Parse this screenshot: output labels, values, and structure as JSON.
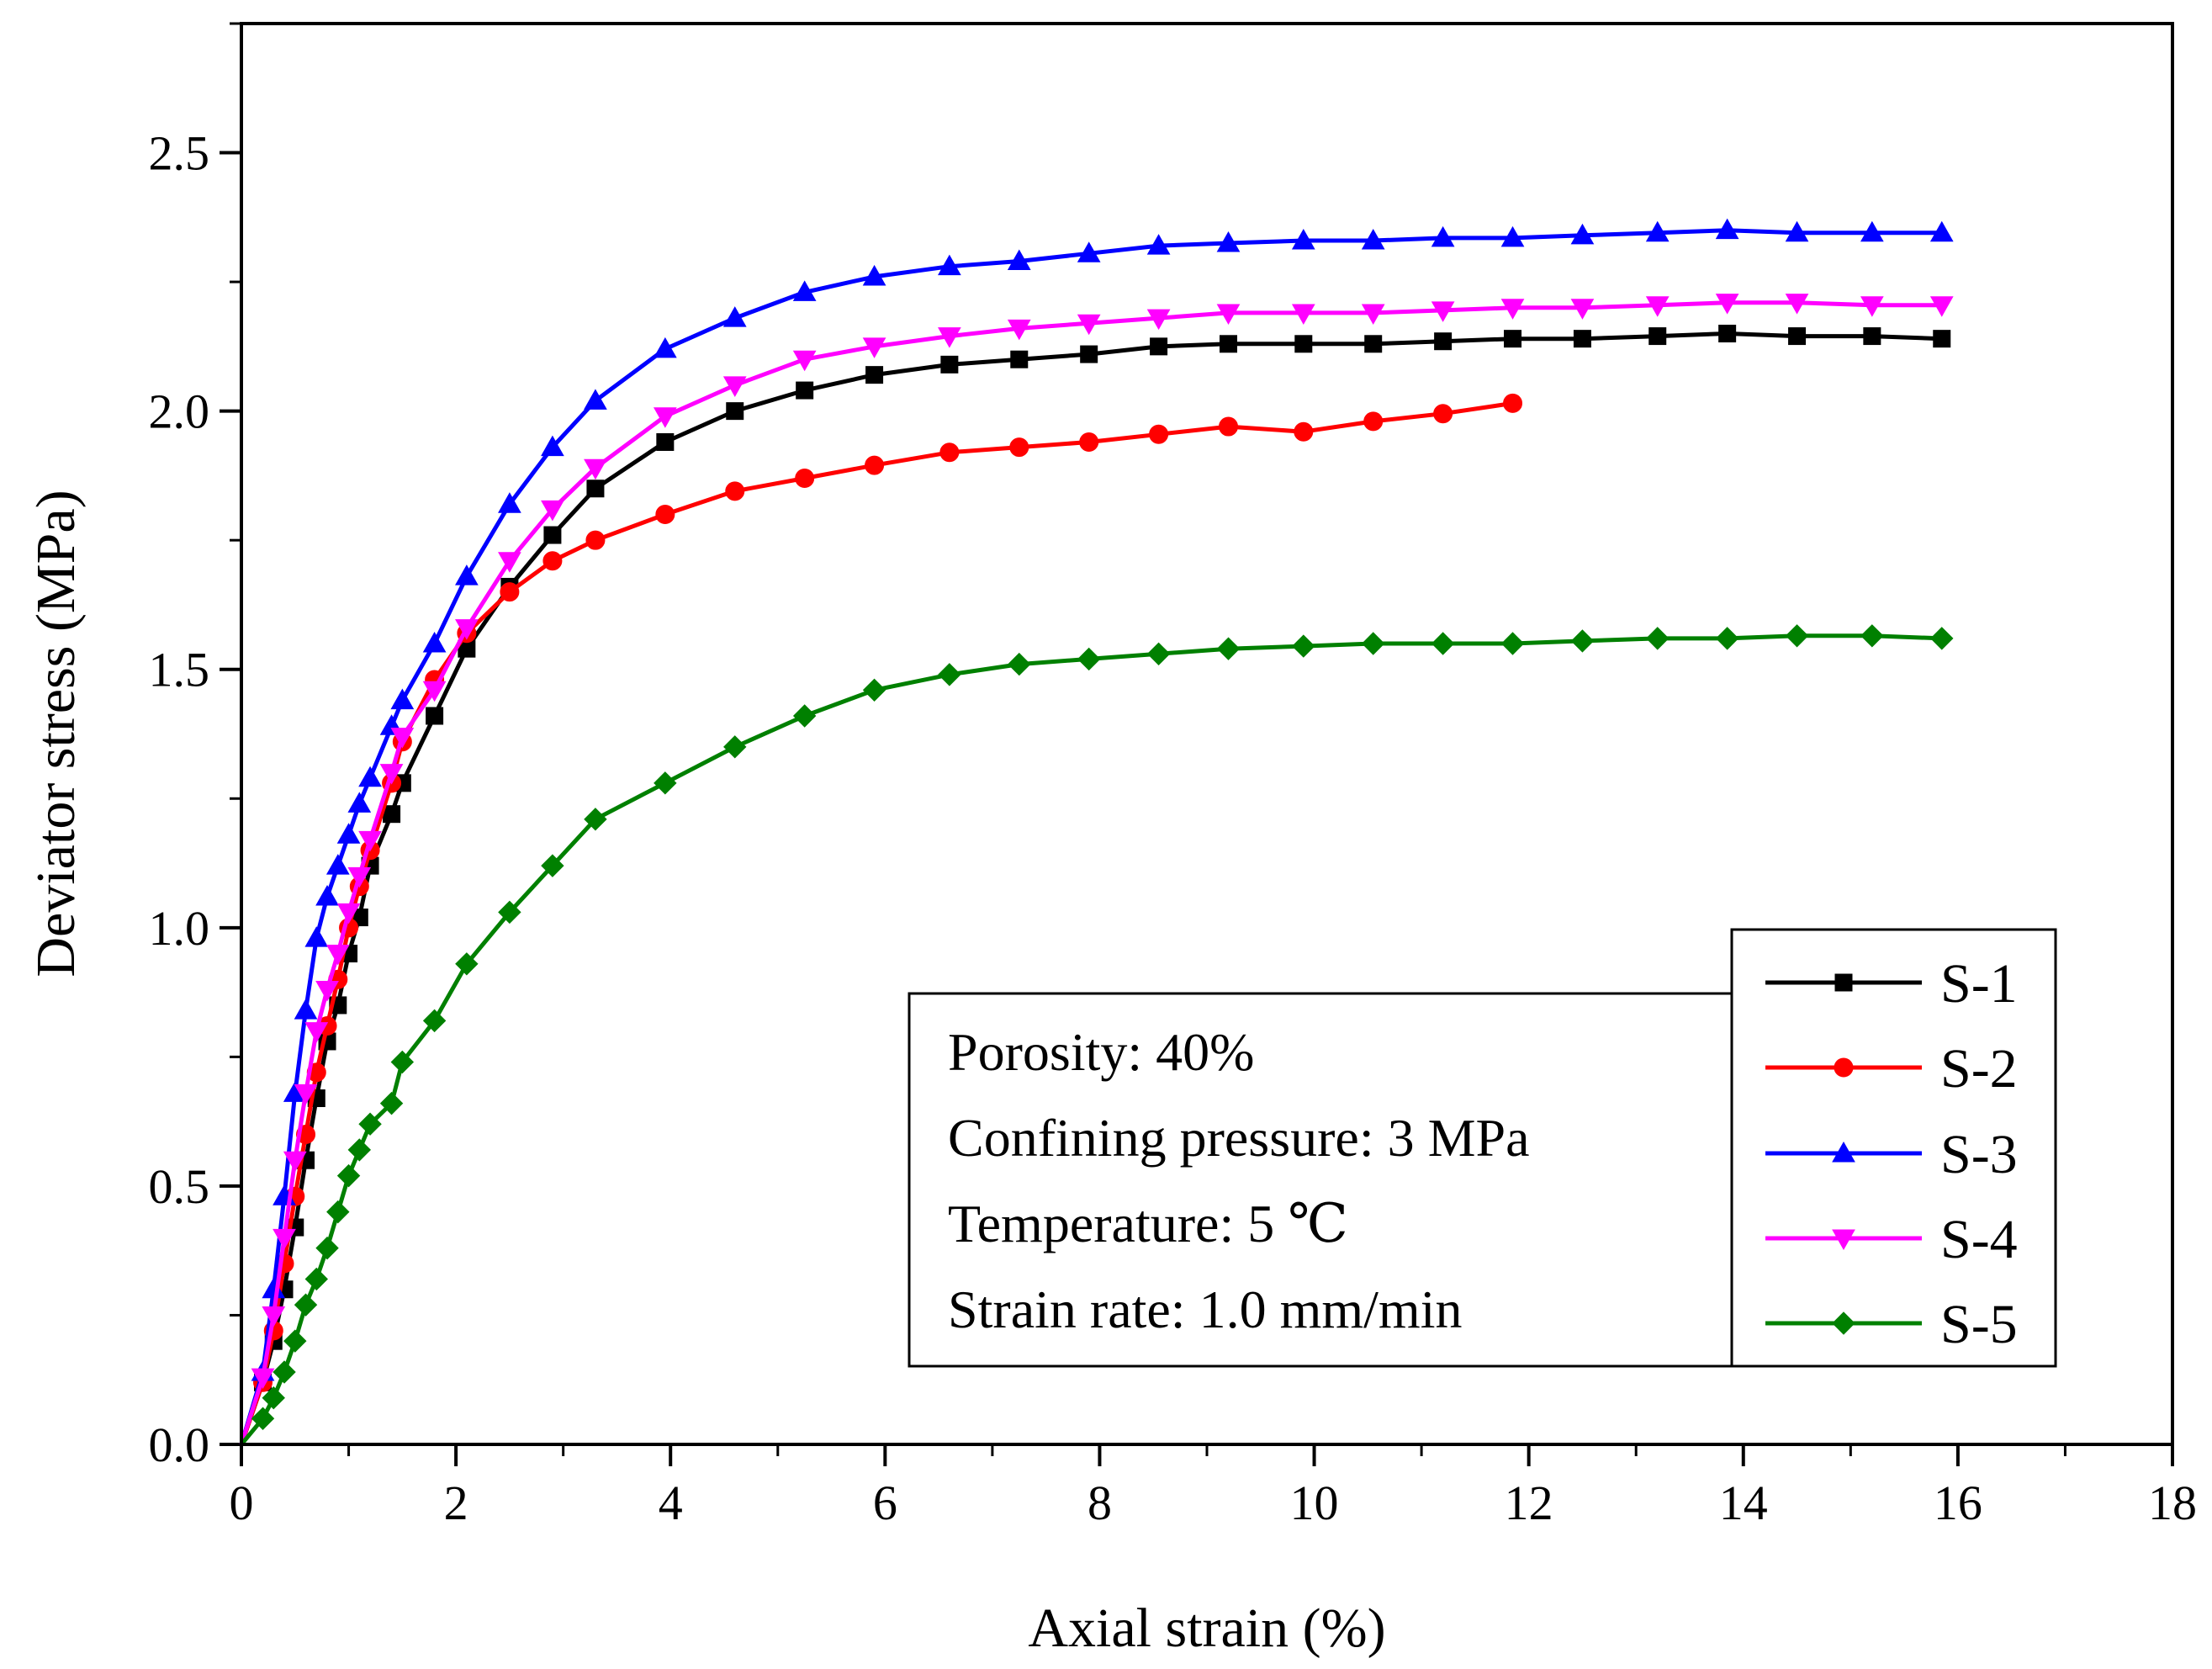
{
  "chart_data": {
    "type": "line",
    "title": "",
    "xlabel": "Axial strain (%)",
    "ylabel": "Deviator stress (MPa)",
    "xlim": [
      0,
      18
    ],
    "ylim": [
      0,
      2.75
    ],
    "xticks": [
      0,
      2,
      4,
      6,
      8,
      10,
      12,
      14,
      16,
      18
    ],
    "xtick_labels": [
      "0",
      "2",
      "4",
      "6",
      "8",
      "10",
      "12",
      "14",
      "16",
      "18"
    ],
    "yticks": [
      0,
      0.5,
      1,
      1.5,
      2,
      2.5
    ],
    "ytick_labels": [
      "0.0",
      "0.5",
      "1.0",
      "1.5",
      "2.0",
      "2.5"
    ],
    "grid": false,
    "legend_position": "bottom-right",
    "annotations": [
      "Porosity: 40%",
      "Confining pressure: 3 MPa",
      "Temperature: 5 ℃",
      "Strain rate: 1.0 mm/min"
    ],
    "series": [
      {
        "name": "S-1",
        "color": "#000000",
        "marker": "square",
        "x": [
          0,
          0.2,
          0.3,
          0.4,
          0.5,
          0.6,
          0.7,
          0.8,
          0.9,
          1.0,
          1.1,
          1.2,
          1.4,
          1.5,
          1.8,
          2.1,
          2.5,
          2.9,
          3.3,
          3.95,
          4.6,
          5.25,
          5.9,
          6.6,
          7.25,
          7.9,
          8.55,
          9.2,
          9.9,
          10.55,
          11.2,
          11.85,
          12.5,
          13.2,
          13.85,
          14.5,
          15.2,
          15.85
        ],
        "y": [
          0,
          0.12,
          0.2,
          0.3,
          0.42,
          0.55,
          0.67,
          0.78,
          0.85,
          0.95,
          1.02,
          1.12,
          1.22,
          1.28,
          1.41,
          1.54,
          1.66,
          1.76,
          1.85,
          1.94,
          2.0,
          2.04,
          2.07,
          2.09,
          2.1,
          2.11,
          2.125,
          2.13,
          2.13,
          2.13,
          2.135,
          2.14,
          2.14,
          2.145,
          2.15,
          2.145,
          2.145,
          2.14
        ]
      },
      {
        "name": "S-2",
        "color": "#ff0000",
        "marker": "circle",
        "x": [
          0,
          0.2,
          0.3,
          0.4,
          0.5,
          0.6,
          0.7,
          0.8,
          0.9,
          1.0,
          1.1,
          1.2,
          1.4,
          1.5,
          1.8,
          2.1,
          2.5,
          2.9,
          3.3,
          3.95,
          4.6,
          5.25,
          5.9,
          6.6,
          7.25,
          7.9,
          8.55,
          9.2,
          9.9,
          10.55,
          11.2,
          11.85
        ],
        "y": [
          0,
          0.12,
          0.22,
          0.35,
          0.48,
          0.6,
          0.72,
          0.81,
          0.9,
          1.0,
          1.08,
          1.15,
          1.28,
          1.36,
          1.48,
          1.57,
          1.65,
          1.71,
          1.75,
          1.8,
          1.845,
          1.87,
          1.895,
          1.92,
          1.93,
          1.94,
          1.955,
          1.97,
          1.96,
          1.98,
          1.995,
          2.015
        ]
      },
      {
        "name": "S-3",
        "color": "#0000ff",
        "marker": "triangle-up",
        "x": [
          0,
          0.2,
          0.3,
          0.4,
          0.5,
          0.6,
          0.7,
          0.8,
          0.9,
          1.0,
          1.1,
          1.2,
          1.4,
          1.5,
          1.8,
          2.1,
          2.5,
          2.9,
          3.3,
          3.95,
          4.6,
          5.25,
          5.9,
          6.6,
          7.25,
          7.9,
          8.55,
          9.2,
          9.9,
          10.55,
          11.2,
          11.85,
          12.5,
          13.2,
          13.85,
          14.5,
          15.2,
          15.85
        ],
        "y": [
          0,
          0.14,
          0.3,
          0.48,
          0.68,
          0.84,
          0.98,
          1.06,
          1.12,
          1.18,
          1.24,
          1.29,
          1.39,
          1.44,
          1.55,
          1.68,
          1.82,
          1.93,
          2.02,
          2.12,
          2.18,
          2.23,
          2.26,
          2.28,
          2.29,
          2.305,
          2.32,
          2.325,
          2.33,
          2.33,
          2.335,
          2.335,
          2.34,
          2.345,
          2.35,
          2.345,
          2.345,
          2.345
        ]
      },
      {
        "name": "S-4",
        "color": "#ff00ff",
        "marker": "triangle-down",
        "x": [
          0,
          0.2,
          0.3,
          0.4,
          0.5,
          0.6,
          0.7,
          0.8,
          0.9,
          1.0,
          1.1,
          1.2,
          1.4,
          1.5,
          1.8,
          2.1,
          2.5,
          2.9,
          3.3,
          3.95,
          4.6,
          5.25,
          5.9,
          6.6,
          7.25,
          7.9,
          8.55,
          9.2,
          9.9,
          10.55,
          11.2,
          11.85,
          12.5,
          13.2,
          13.85,
          14.5,
          15.2,
          15.85
        ],
        "y": [
          0,
          0.13,
          0.25,
          0.4,
          0.55,
          0.68,
          0.8,
          0.88,
          0.95,
          1.03,
          1.1,
          1.17,
          1.3,
          1.37,
          1.46,
          1.58,
          1.71,
          1.81,
          1.89,
          1.99,
          2.05,
          2.1,
          2.125,
          2.145,
          2.16,
          2.17,
          2.18,
          2.19,
          2.19,
          2.19,
          2.195,
          2.2,
          2.2,
          2.205,
          2.21,
          2.21,
          2.205,
          2.205
        ]
      },
      {
        "name": "S-5",
        "color": "#008000",
        "marker": "diamond",
        "x": [
          0,
          0.2,
          0.3,
          0.4,
          0.5,
          0.6,
          0.7,
          0.8,
          0.9,
          1.0,
          1.1,
          1.2,
          1.4,
          1.5,
          1.8,
          2.1,
          2.5,
          2.9,
          3.3,
          3.95,
          4.6,
          5.25,
          5.9,
          6.6,
          7.25,
          7.9,
          8.55,
          9.2,
          9.9,
          10.55,
          11.2,
          11.85,
          12.5,
          13.2,
          13.85,
          14.5,
          15.2,
          15.85
        ],
        "y": [
          0,
          0.05,
          0.09,
          0.14,
          0.2,
          0.27,
          0.32,
          0.38,
          0.45,
          0.52,
          0.57,
          0.62,
          0.66,
          0.74,
          0.82,
          0.93,
          1.03,
          1.12,
          1.21,
          1.28,
          1.35,
          1.41,
          1.46,
          1.49,
          1.51,
          1.52,
          1.53,
          1.54,
          1.545,
          1.55,
          1.55,
          1.55,
          1.555,
          1.56,
          1.56,
          1.565,
          1.565,
          1.56
        ]
      }
    ]
  }
}
